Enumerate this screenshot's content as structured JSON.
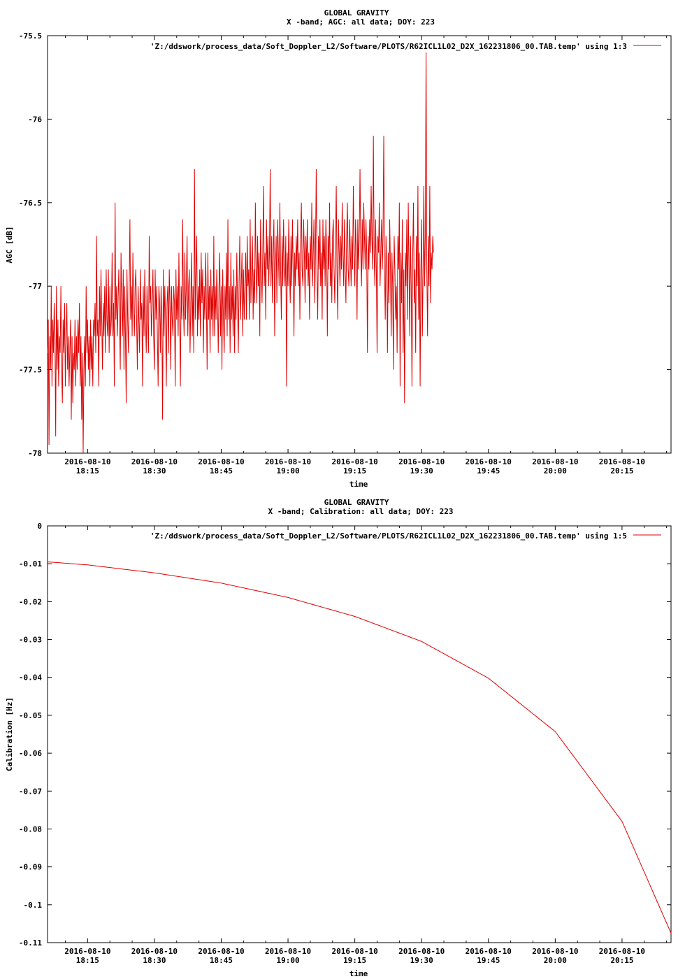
{
  "charts": [
    {
      "title": "GLOBAL GRAVITY",
      "subtitle": "X -band; AGC: all data; DOY: 223",
      "xlabel": "time",
      "ylabel": "AGC [dB]",
      "legend": "'Z:/ddswork/process_data/Soft_Doppler_L2/Software/PLOTS/R62ICL1L02_D2X_162231806_00.TAB.temp' using 1:3",
      "yticks": [
        "-75.5",
        "-76",
        "-76.5",
        "-77",
        "-77.5",
        "-78"
      ],
      "xtick_date": "2016-08-10",
      "xtick_times": [
        "18:15",
        "18:30",
        "18:45",
        "19:00",
        "19:15",
        "19:30",
        "19:45",
        "20:00",
        "20:15"
      ]
    },
    {
      "title": "GLOBAL GRAVITY",
      "subtitle": "X -band; Calibration: all data; DOY: 223",
      "xlabel": "time",
      "ylabel": "Calibration [Hz]",
      "legend": "'Z:/ddswork/process_data/Soft_Doppler_L2/Software/PLOTS/R62ICL1L02_D2X_162231806_00.TAB.temp' using 1:5",
      "yticks": [
        "0",
        "-0.01",
        "-0.02",
        "-0.03",
        "-0.04",
        "-0.05",
        "-0.06",
        "-0.07",
        "-0.08",
        "-0.09",
        "-0.1",
        "-0.11"
      ],
      "xtick_date": "2016-08-10",
      "xtick_times": [
        "18:15",
        "18:30",
        "18:45",
        "19:00",
        "19:15",
        "19:30",
        "19:45",
        "20:00",
        "20:15"
      ]
    }
  ],
  "chart_data": [
    {
      "type": "line",
      "title": "GLOBAL GRAVITY",
      "subtitle": "X -band; AGC: all data; DOY: 223",
      "xlabel": "time",
      "ylabel": "AGC [dB]",
      "xlim": [
        "2016-08-10 18:06",
        "2016-08-10 20:26"
      ],
      "ylim": [
        -78,
        -75.5
      ],
      "series_color": "#e00000",
      "x_step_seconds": 10,
      "series": [
        {
          "name": "'Z:/ddswork/process_data/Soft_Doppler_L2/Software/PLOTS/R62ICL1L02_D2X_162231806_00.TAB.temp' using 1:3",
          "values": [
            -77.4,
            -77.2,
            -77.95,
            -77.3,
            -77.5,
            -77.0,
            -77.6,
            -77.2,
            -77.4,
            -77.1,
            -77.3,
            -77.9,
            -77.0,
            -77.5,
            -77.2,
            -77.6,
            -77.3,
            -77.4,
            -77.0,
            -77.5,
            -77.7,
            -77.2,
            -77.4,
            -77.1,
            -77.6,
            -77.3,
            -77.1,
            -77.5,
            -77.3,
            -77.6,
            -77.4,
            -77.2,
            -77.8,
            -77.3,
            -77.7,
            -77.4,
            -77.5,
            -77.2,
            -77.6,
            -77.3,
            -77.5,
            -77.2,
            -77.4,
            -77.1,
            -77.6,
            -77.3,
            -77.8,
            -77.4,
            -78.0,
            -77.5,
            -77.3,
            -77.6,
            -77.0,
            -77.4,
            -77.2,
            -77.5,
            -77.3,
            -77.6,
            -77.2,
            -77.5,
            -77.3,
            -77.6,
            -77.2,
            -77.3,
            -77.1,
            -77.4,
            -76.7,
            -77.3,
            -77.2,
            -77.6,
            -77.0,
            -77.3,
            -76.9,
            -77.2,
            -77.5,
            -77.1,
            -77.3,
            -77.0,
            -77.4,
            -76.9,
            -77.2,
            -77.3,
            -76.9,
            -77.4,
            -77.0,
            -77.3,
            -77.2,
            -76.8,
            -77.3,
            -77.1,
            -77.6,
            -76.5,
            -77.2,
            -77.0,
            -77.3,
            -77.1,
            -76.9,
            -77.2,
            -77.5,
            -76.8,
            -77.1,
            -77.3,
            -76.9,
            -77.5,
            -77.0,
            -77.3,
            -77.7,
            -76.9,
            -77.2,
            -77.4,
            -77.0,
            -76.6,
            -77.2,
            -77.0,
            -77.3,
            -76.8,
            -77.1,
            -77.3,
            -77.0,
            -76.9,
            -77.2,
            -77.5,
            -77.0,
            -77.2,
            -77.4,
            -76.9,
            -77.2,
            -77.1,
            -77.6,
            -77.0,
            -77.3,
            -76.9,
            -77.2,
            -77.4,
            -77.0,
            -77.2,
            -77.4,
            -76.7,
            -77.1,
            -77.0,
            -77.3,
            -77.1,
            -76.9,
            -77.3,
            -77.5,
            -76.9,
            -77.2,
            -77.0,
            -77.3,
            -77.6,
            -77.0,
            -77.1,
            -77.4,
            -77.0,
            -77.2,
            -77.8,
            -76.9,
            -77.3,
            -77.0,
            -77.2,
            -77.6,
            -77.1,
            -77.0,
            -77.4,
            -76.9,
            -77.1,
            -77.5,
            -77.0,
            -77.2,
            -77.3,
            -77.0,
            -77.1,
            -77.6,
            -76.9,
            -77.2,
            -77.0,
            -77.3,
            -76.8,
            -77.2,
            -77.6,
            -77.0,
            -77.2,
            -76.6,
            -77.1,
            -77.3,
            -76.8,
            -77.2,
            -77.0,
            -76.7,
            -77.3,
            -77.0,
            -76.9,
            -77.4,
            -77.1,
            -76.8,
            -77.3,
            -77.0,
            -77.4,
            -76.3,
            -77.2,
            -76.9,
            -76.7,
            -77.3,
            -77.0,
            -77.2,
            -76.9,
            -77.3,
            -76.8,
            -77.1,
            -76.9,
            -77.4,
            -77.0,
            -77.2,
            -76.8,
            -77.1,
            -77.5,
            -76.8,
            -77.2,
            -77.0,
            -77.4,
            -76.9,
            -77.2,
            -77.0,
            -77.3,
            -76.7,
            -77.3,
            -77.0,
            -77.2,
            -76.9,
            -77.1,
            -77.4,
            -77.0,
            -76.8,
            -77.3,
            -77.0,
            -77.5,
            -76.9,
            -77.2,
            -77.4,
            -77.0,
            -77.2,
            -76.8,
            -77.3,
            -76.6,
            -77.2,
            -77.0,
            -77.4,
            -76.8,
            -77.2,
            -77.0,
            -77.3,
            -76.9,
            -77.4,
            -77.0,
            -77.2,
            -76.8,
            -77.1,
            -77.4,
            -77.0,
            -76.7,
            -77.2,
            -77.0,
            -76.8,
            -77.3,
            -76.9,
            -77.2,
            -77.0,
            -76.8,
            -77.2,
            -76.7,
            -77.0,
            -76.9,
            -77.2,
            -76.6,
            -77.1,
            -76.9,
            -76.7,
            -77.2,
            -76.9,
            -77.1,
            -76.5,
            -76.9,
            -77.1,
            -76.7,
            -77.0,
            -76.8,
            -77.3,
            -76.6,
            -76.9,
            -77.1,
            -76.8,
            -76.4,
            -77.0,
            -76.8,
            -77.2,
            -76.6,
            -76.9,
            -76.7,
            -77.0,
            -76.8,
            -76.3,
            -77.0,
            -76.7,
            -77.1,
            -76.8,
            -76.6,
            -77.3,
            -76.9,
            -76.7,
            -77.1,
            -76.6,
            -76.8,
            -77.0,
            -76.5,
            -76.9,
            -77.2,
            -76.7,
            -77.0,
            -76.6,
            -76.9,
            -77.0,
            -76.7,
            -77.6,
            -76.8,
            -77.0,
            -76.6,
            -76.9,
            -77.1,
            -76.7,
            -77.0,
            -76.6,
            -76.9,
            -77.3,
            -76.8,
            -77.0,
            -76.7,
            -76.9,
            -76.6,
            -77.0,
            -76.8,
            -77.2,
            -76.7,
            -76.5,
            -76.9,
            -77.0,
            -76.6,
            -76.8,
            -77.1,
            -76.7,
            -76.9,
            -76.6,
            -77.0,
            -76.8,
            -77.2,
            -76.7,
            -76.9,
            -76.5,
            -77.0,
            -76.8,
            -76.6,
            -77.1,
            -76.8,
            -76.3,
            -76.9,
            -77.2,
            -76.7,
            -76.9,
            -76.6,
            -77.0,
            -76.8,
            -77.2,
            -76.6,
            -76.9,
            -76.7,
            -77.0,
            -76.6,
            -76.8,
            -77.3,
            -76.7,
            -76.9,
            -76.5,
            -77.0,
            -76.8,
            -77.1,
            -76.7,
            -76.6,
            -76.9,
            -77.1,
            -76.7,
            -76.4,
            -76.9,
            -77.2,
            -76.6,
            -76.8,
            -77.0,
            -76.7,
            -76.9,
            -76.5,
            -76.8,
            -77.0,
            -76.6,
            -76.9,
            -77.1,
            -76.7,
            -76.5,
            -76.9,
            -77.0,
            -76.6,
            -76.8,
            -77.0,
            -76.7,
            -76.9,
            -76.4,
            -76.8,
            -77.0,
            -76.6,
            -76.8,
            -77.2,
            -76.6,
            -76.9,
            -76.7,
            -76.3,
            -76.8,
            -77.0,
            -76.6,
            -76.9,
            -76.5,
            -76.7,
            -76.9,
            -76.6,
            -76.8,
            -77.4,
            -76.7,
            -76.9,
            -76.6,
            -76.8,
            -76.4,
            -76.7,
            -76.9,
            -76.1,
            -76.8,
            -77.0,
            -76.6,
            -76.9,
            -77.4,
            -76.7,
            -76.8,
            -76.5,
            -77.0,
            -76.8,
            -76.6,
            -76.9,
            -76.7,
            -76.1,
            -76.9,
            -77.2,
            -76.7,
            -76.9,
            -77.4,
            -76.8,
            -77.1,
            -76.6,
            -76.9,
            -77.3,
            -76.8,
            -77.0,
            -77.5,
            -76.7,
            -76.9,
            -77.2,
            -77.0,
            -77.4,
            -76.7,
            -76.9,
            -76.5,
            -77.6,
            -76.8,
            -77.1,
            -76.6,
            -77.4,
            -76.9,
            -77.7,
            -76.8,
            -77.0,
            -76.6,
            -77.2,
            -76.5,
            -76.9,
            -77.3,
            -76.7,
            -77.0,
            -77.6,
            -76.8,
            -76.5,
            -77.1,
            -76.9,
            -77.4,
            -76.7,
            -77.0,
            -76.4,
            -77.2,
            -76.8,
            -77.6,
            -76.9,
            -76.6,
            -77.3,
            -76.9,
            -76.4,
            -77.0,
            -76.7,
            -75.6,
            -76.9,
            -77.3,
            -76.7,
            -77.0,
            -76.4,
            -77.1,
            -76.8,
            -76.9,
            -76.7,
            -76.8
          ]
        }
      ]
    },
    {
      "type": "line",
      "title": "GLOBAL GRAVITY",
      "subtitle": "X -band; Calibration: all data; DOY: 223",
      "xlabel": "time",
      "ylabel": "Calibration [Hz]",
      "xlim": [
        "2016-08-10 18:06",
        "2016-08-10 20:26"
      ],
      "ylim": [
        -0.11,
        0
      ],
      "series_color": "#e00000",
      "series": [
        {
          "name": "'Z:/ddswork/process_data/Soft_Doppler_L2/Software/PLOTS/R62ICL1L02_D2X_162231806_00.TAB.temp' using 1:5",
          "x": [
            "18:06",
            "18:15",
            "18:30",
            "18:45",
            "19:00",
            "19:15",
            "19:30",
            "19:45",
            "20:00",
            "20:15",
            "20:26"
          ],
          "y": [
            -0.0095,
            -0.0103,
            -0.0124,
            -0.0151,
            -0.0189,
            -0.0239,
            -0.0305,
            -0.0402,
            -0.0543,
            -0.078,
            -0.1075
          ]
        }
      ]
    }
  ]
}
